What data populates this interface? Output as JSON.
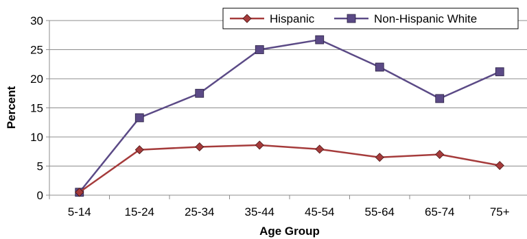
{
  "chart_data": {
    "type": "line",
    "title": "",
    "xlabel": "Age Group",
    "ylabel": "Percent",
    "categories": [
      "5-14",
      "15-24",
      "25-34",
      "35-44",
      "45-54",
      "55-64",
      "65-74",
      "75+"
    ],
    "ylim": [
      0,
      30
    ],
    "yticks": [
      "0",
      "5",
      "10",
      "15",
      "20",
      "25",
      "30"
    ],
    "grid": "horizontal",
    "legend_position": "top-right",
    "series": [
      {
        "name": "Hispanic",
        "marker": "diamond",
        "color": "#a53b3b",
        "values": [
          0.5,
          7.8,
          8.3,
          8.6,
          7.9,
          6.5,
          7.0,
          5.1
        ]
      },
      {
        "name": "Non-Hispanic White",
        "marker": "square",
        "color": "#5b4a86",
        "values": [
          0.5,
          13.3,
          17.5,
          25.0,
          26.7,
          22.0,
          16.6,
          21.2
        ]
      }
    ]
  }
}
